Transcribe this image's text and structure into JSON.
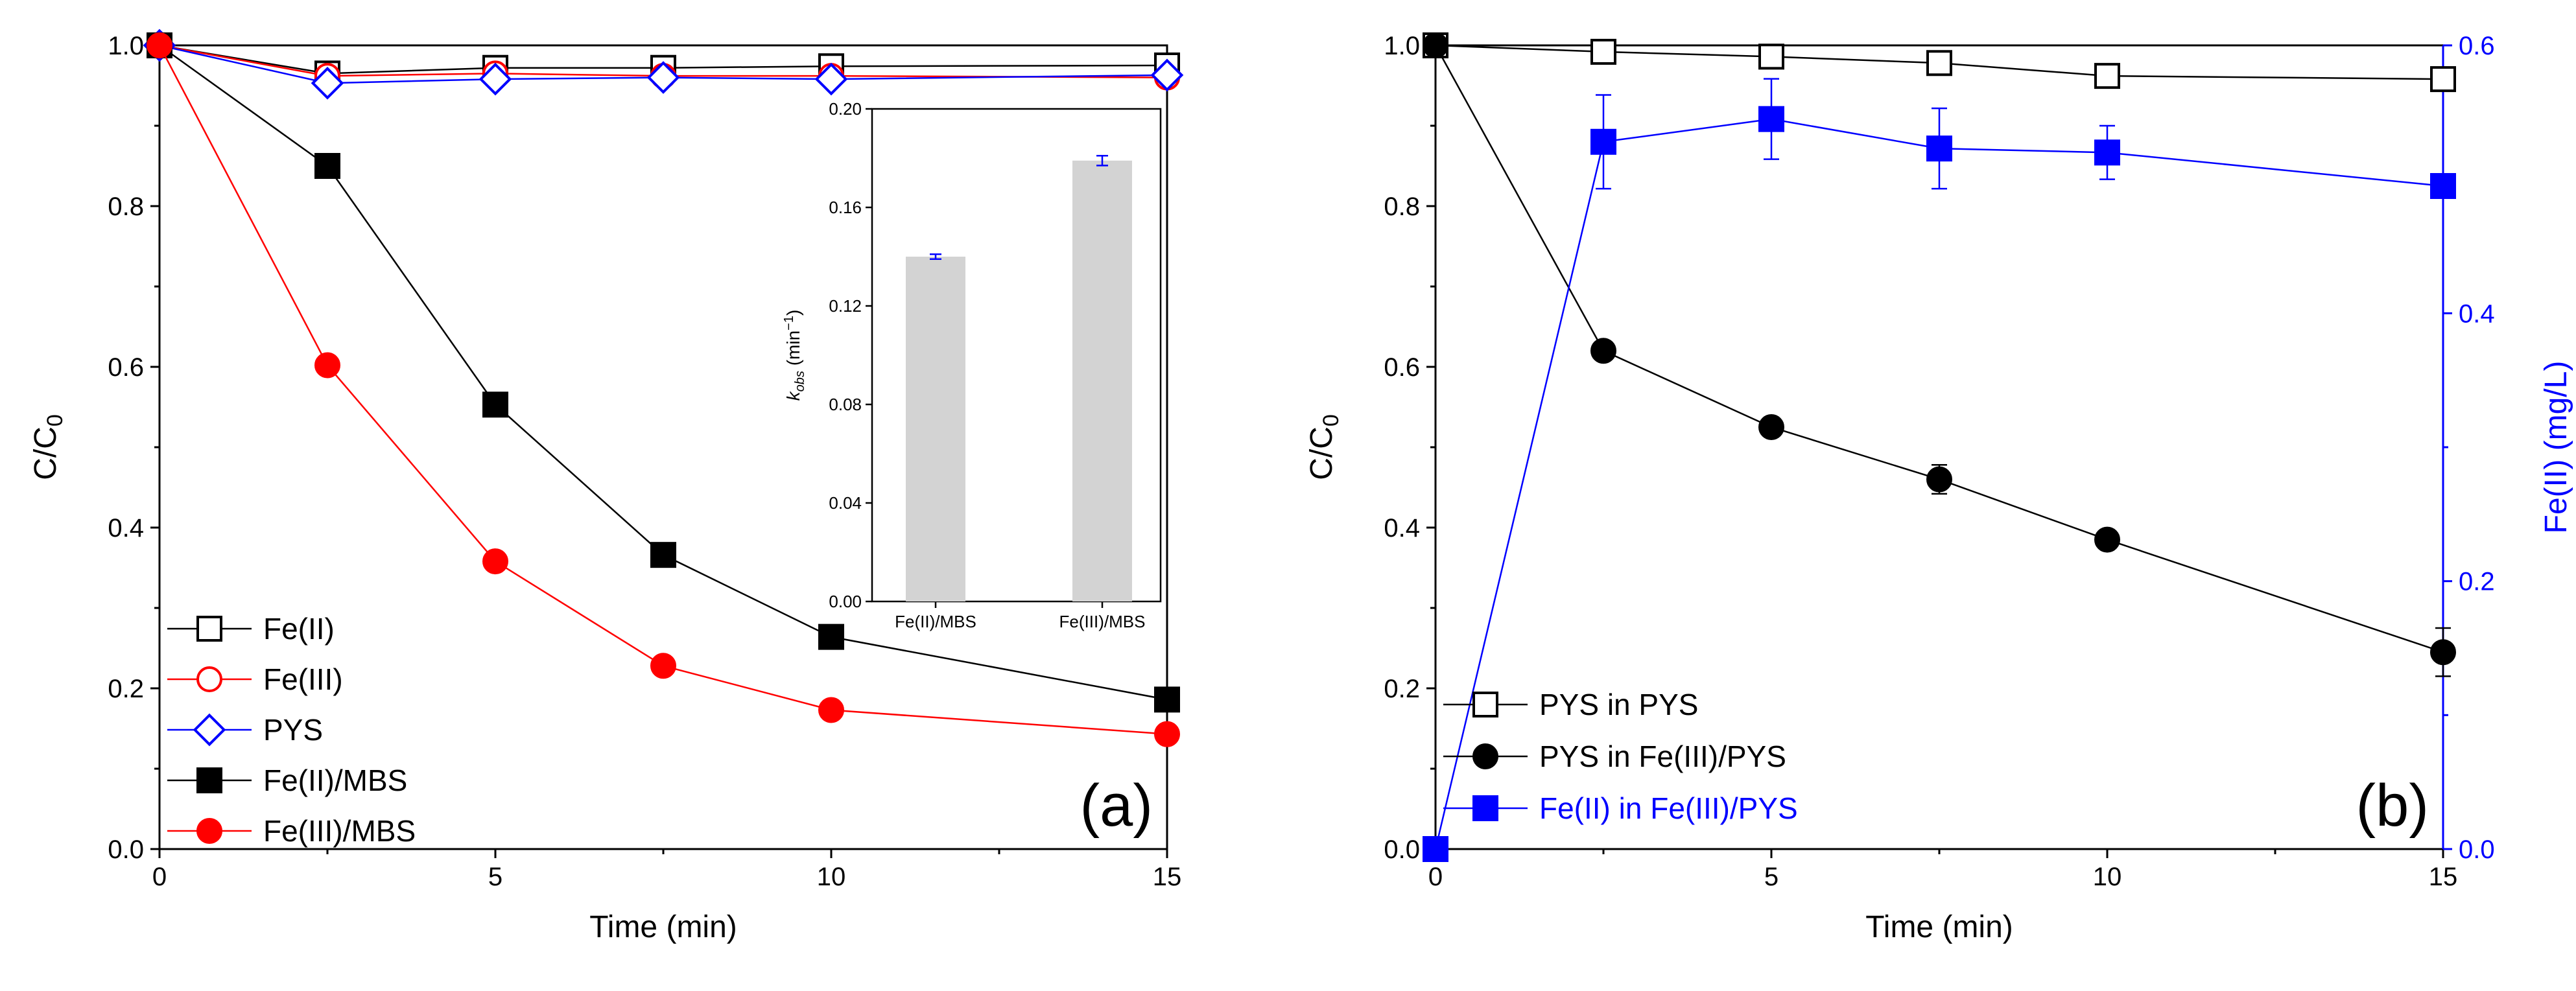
{
  "figure": {
    "chart_data": [
      {
        "panel": "a",
        "type": "line",
        "panel_label": "(a)",
        "xlabel": "Time (min)",
        "ylabel_main": "C/C",
        "ylabel_sub": "0",
        "xlim": [
          0,
          15
        ],
        "ylim": [
          0,
          1.0
        ],
        "xticks": [
          0,
          5,
          10,
          15
        ],
        "yticks": [
          0.0,
          0.2,
          0.4,
          0.6,
          0.8,
          1.0
        ],
        "xtick_labels": [
          "0",
          "5",
          "10",
          "15"
        ],
        "ytick_labels": [
          "0.0",
          "0.2",
          "0.4",
          "0.6",
          "0.8",
          "1.0"
        ],
        "x": [
          0,
          2.5,
          5,
          7.5,
          10,
          15
        ],
        "legend_position": "bottom-left",
        "series": [
          {
            "name": "Fe(II)",
            "color": "#000000",
            "marker": "square",
            "filled": false,
            "values": [
              1.0,
              0.965,
              0.972,
              0.972,
              0.974,
              0.975
            ]
          },
          {
            "name": "Fe(III)",
            "color": "#ff0000",
            "marker": "circle",
            "filled": false,
            "values": [
              1.0,
              0.962,
              0.965,
              0.962,
              0.962,
              0.96
            ]
          },
          {
            "name": "PYS",
            "color": "#0000ff",
            "marker": "diamond",
            "filled": false,
            "values": [
              1.0,
              0.953,
              0.958,
              0.96,
              0.958,
              0.963
            ]
          },
          {
            "name": "Fe(II)/MBS",
            "color": "#000000",
            "marker": "square",
            "filled": true,
            "values": [
              1.0,
              0.85,
              0.553,
              0.366,
              0.264,
              0.186
            ]
          },
          {
            "name": "Fe(III)/MBS",
            "color": "#ff0000",
            "marker": "circle",
            "filled": true,
            "values": [
              1.0,
              0.602,
              0.358,
              0.228,
              0.173,
              0.143
            ]
          }
        ],
        "inset": {
          "type": "bar",
          "categories": [
            "Fe(II)/MBS",
            "Fe(III)/MBS"
          ],
          "values": [
            0.14,
            0.179
          ],
          "errors": [
            0.001,
            0.002
          ],
          "bar_color": "#d3d3d3",
          "error_color": "#0000ff",
          "ylabel": "k",
          "ylabel_sub": "obs",
          "ylabel_unit": " (min",
          "ylabel_sup": "−1",
          "ylabel_close": ")",
          "ylim": [
            0,
            0.2
          ],
          "yticks": [
            0.0,
            0.04,
            0.08,
            0.12,
            0.16,
            0.2
          ],
          "ytick_labels": [
            "0.00",
            "0.04",
            "0.08",
            "0.12",
            "0.16",
            "0.20"
          ]
        }
      },
      {
        "panel": "b",
        "type": "line",
        "panel_label": "(b)",
        "xlabel": "Time (min)",
        "ylabel_main": "C/C",
        "ylabel_sub": "0",
        "ylabel_right": "Fe(II) (mg/L)",
        "xlim": [
          0,
          15
        ],
        "ylim": [
          0,
          1.0
        ],
        "ylim_right": [
          0,
          0.6
        ],
        "xticks": [
          0,
          5,
          10,
          15
        ],
        "yticks": [
          0.0,
          0.2,
          0.4,
          0.6,
          0.8,
          1.0
        ],
        "yticks_right": [
          0.0,
          0.2,
          0.4,
          0.6
        ],
        "xtick_labels": [
          "0",
          "5",
          "10",
          "15"
        ],
        "ytick_labels": [
          "0.0",
          "0.2",
          "0.4",
          "0.6",
          "0.8",
          "1.0"
        ],
        "ytick_labels_right": [
          "0.0",
          "0.2",
          "0.4",
          "0.6"
        ],
        "x": [
          0,
          2.5,
          5,
          7.5,
          10,
          15
        ],
        "legend_position": "bottom-left",
        "series": [
          {
            "name": "PYS in PYS",
            "color": "#000000",
            "marker": "square",
            "filled": false,
            "axis": "left",
            "values": [
              1.0,
              0.992,
              0.986,
              0.978,
              0.962,
              0.958
            ],
            "errors": [
              0.004,
              0.004,
              0.006,
              0.006,
              0.006,
              0.006
            ]
          },
          {
            "name": "PYS in Fe(III)/PYS",
            "color": "#000000",
            "marker": "circle",
            "filled": true,
            "axis": "left",
            "values": [
              1.0,
              0.62,
              0.525,
              0.46,
              0.385,
              0.245
            ],
            "errors": [
              0.004,
              0.006,
              0.008,
              0.018,
              0.008,
              0.03
            ]
          },
          {
            "name": "Fe(II) in Fe(III)/PYS",
            "color": "#0000ff",
            "marker": "square",
            "filled": true,
            "axis": "right",
            "values": [
              0.0,
              0.528,
              0.545,
              0.523,
              0.52,
              0.495
            ],
            "errors": [
              0.002,
              0.035,
              0.03,
              0.03,
              0.02,
              0.002
            ]
          }
        ]
      }
    ]
  }
}
